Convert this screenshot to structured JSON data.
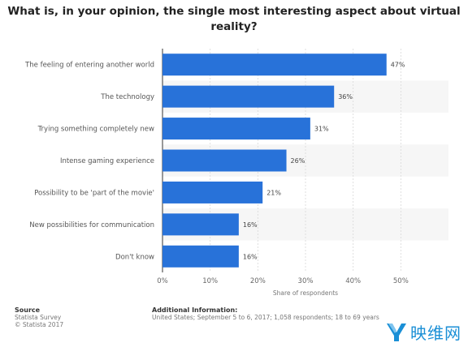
{
  "title": "What is, in your opinion, the single most interesting aspect about virtual reality?",
  "chart_data": {
    "type": "bar",
    "orientation": "horizontal",
    "categories": [
      "The feeling of entering another world",
      "The technology",
      "Trying something completely new",
      "Intense gaming experience",
      "Possibility to be 'part of the movie'",
      "New possibilities for communication",
      "Don't know"
    ],
    "values": [
      47,
      36,
      31,
      26,
      21,
      16,
      16
    ],
    "value_labels": [
      "47%",
      "36%",
      "31%",
      "26%",
      "21%",
      "16%",
      "16%"
    ],
    "xlabel": "Share of respondents",
    "xlim": [
      0,
      60
    ],
    "x_ticks": [
      0,
      10,
      20,
      30,
      40,
      50
    ],
    "x_tick_labels": [
      "0%",
      "10%",
      "20%",
      "30%",
      "40%",
      "50%"
    ],
    "grid": true,
    "bar_color": "#2872d9",
    "stripe_color": "#f6f6f6"
  },
  "footer": {
    "source_head": "Source",
    "source_line1": "Statista Survey",
    "source_line2": "© Statista 2017",
    "info_head": "Additional Information:",
    "info_text": "United States; September 5 to 6, 2017; 1,058 respondents; 18 to 69 years"
  },
  "brand": {
    "name": "映维网",
    "color": "#1a8fd6"
  }
}
